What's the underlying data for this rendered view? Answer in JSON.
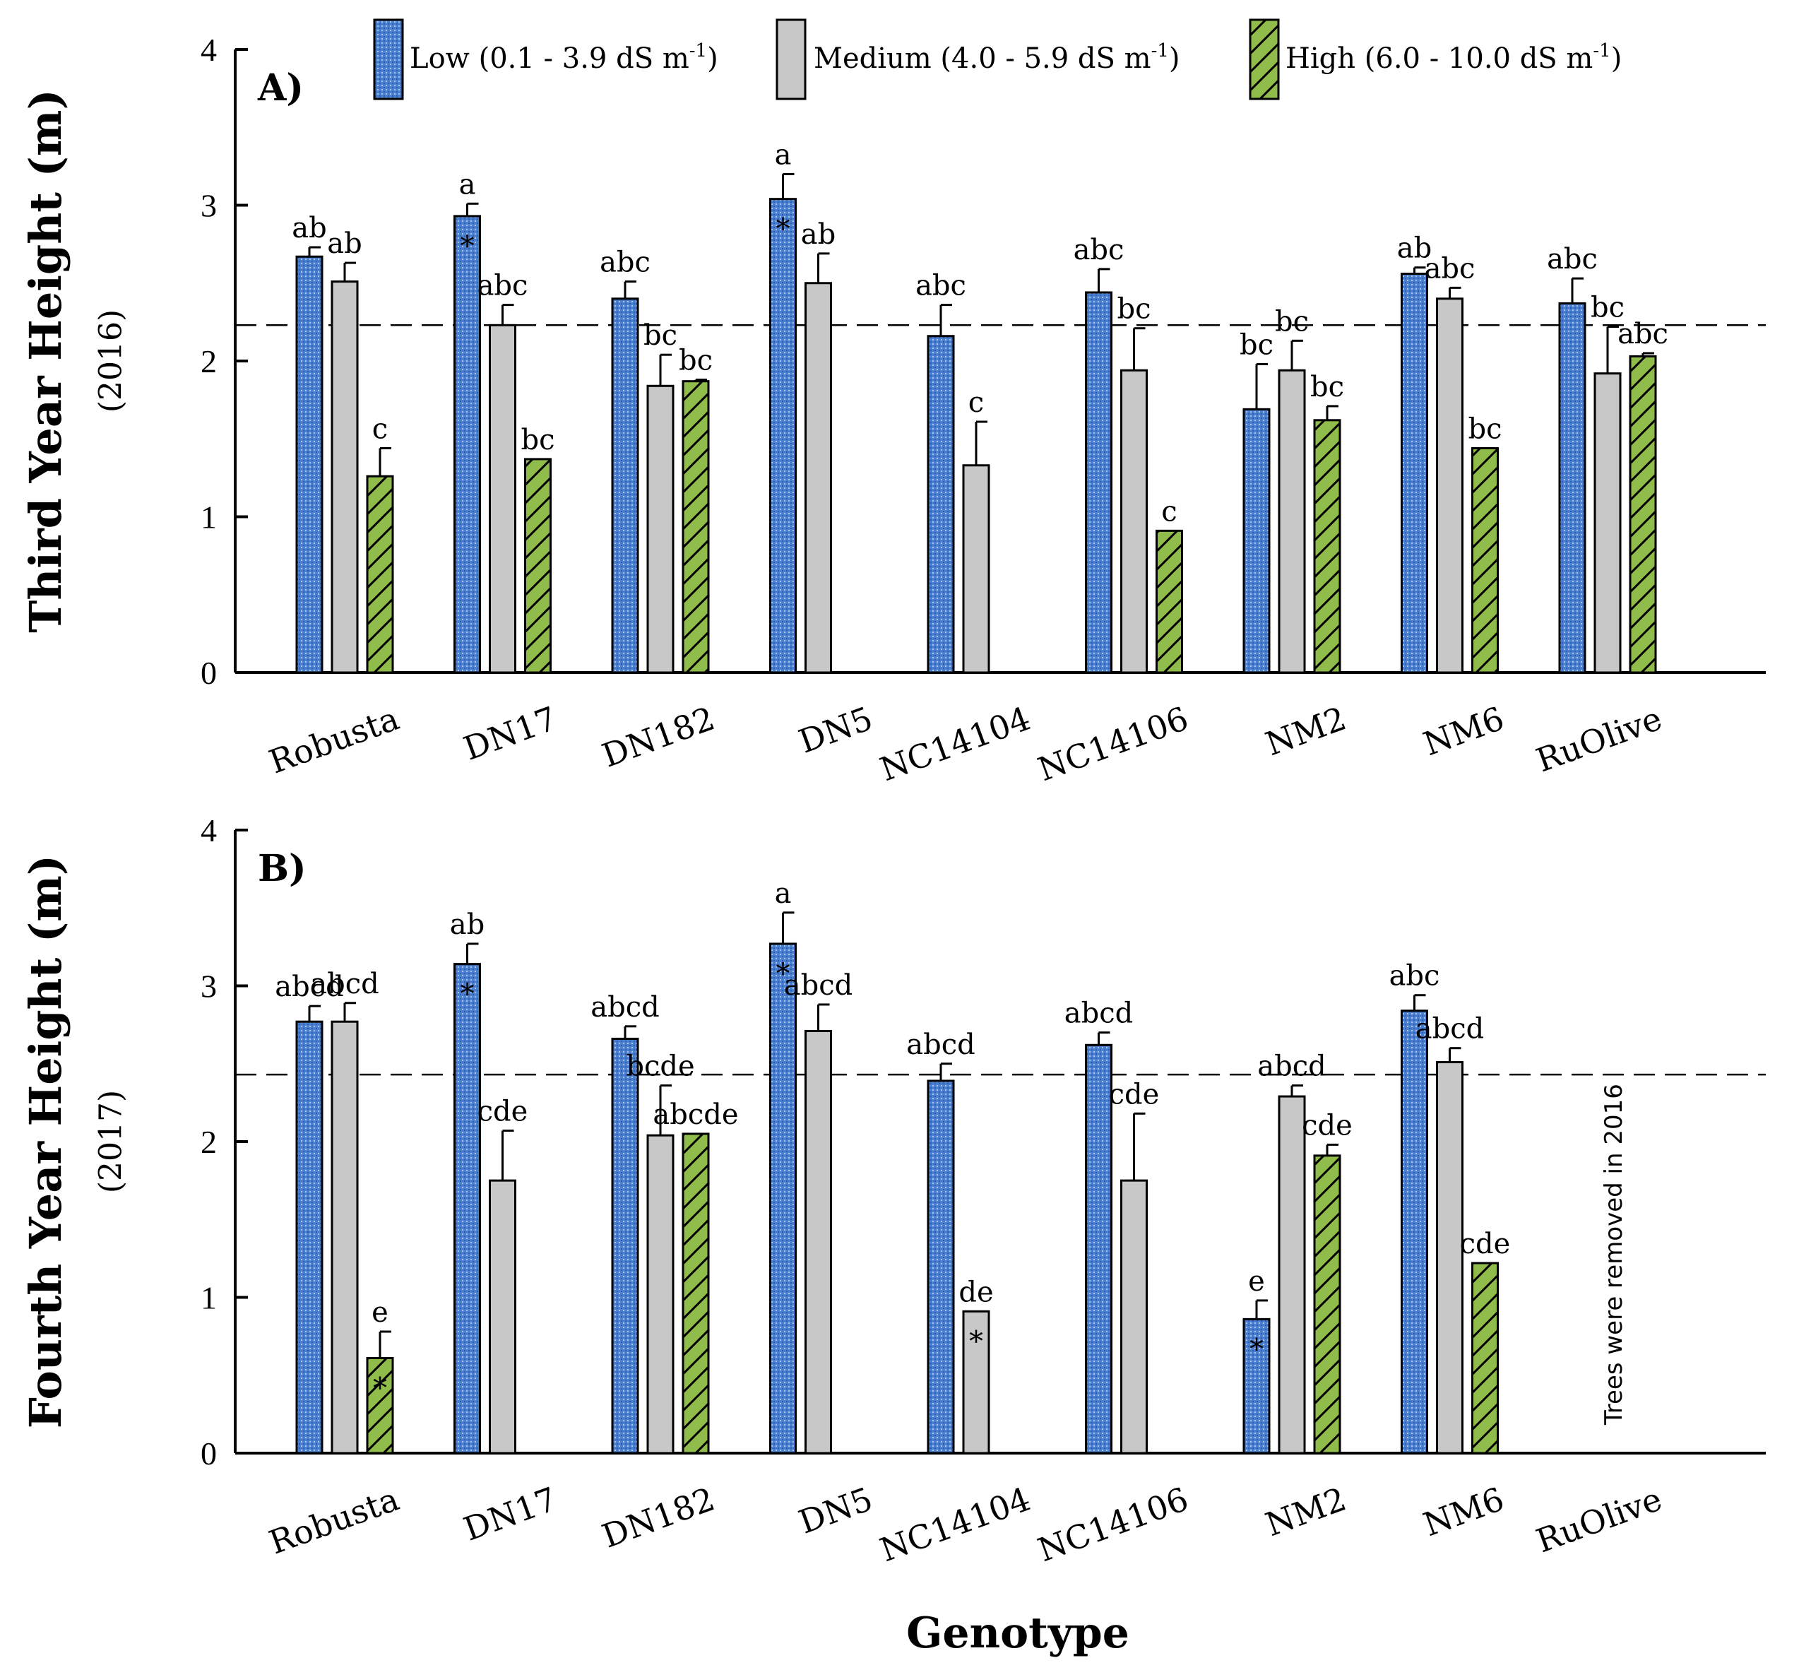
{
  "chart_data": [
    {
      "type": "bar",
      "panel": "A)",
      "ylabel": "Third Year Height (m)",
      "ysublabel": "(2016)",
      "ylim": [
        0,
        4
      ],
      "yticks": [
        "0",
        "1",
        "2",
        "3",
        "4"
      ],
      "reference_line": 2.23,
      "categories": [
        "Robusta",
        "DN17",
        "DN182",
        "DN5",
        "NC14104",
        "NC14106",
        "NM2",
        "NM6",
        "RuOlive"
      ],
      "series": [
        {
          "name": "Low",
          "values": [
            2.67,
            2.93,
            2.4,
            3.04,
            2.16,
            2.44,
            1.69,
            2.56,
            2.37
          ],
          "errors": [
            0.06,
            0.08,
            0.11,
            0.16,
            0.2,
            0.15,
            0.29,
            0.04,
            0.16
          ],
          "letters": [
            "ab",
            "a",
            "abc",
            "a",
            "abc",
            "abc",
            "bc",
            "ab",
            "abc"
          ],
          "stars": [
            "",
            "*",
            "",
            "*",
            "",
            "",
            "",
            "",
            ""
          ]
        },
        {
          "name": "Medium",
          "values": [
            2.51,
            2.23,
            1.84,
            2.5,
            1.33,
            1.94,
            1.94,
            2.4,
            1.92
          ],
          "errors": [
            0.12,
            0.13,
            0.2,
            0.19,
            0.28,
            0.27,
            0.19,
            0.07,
            0.3
          ],
          "letters": [
            "ab",
            "abc",
            "bc",
            "ab",
            "c",
            "bc",
            "bc",
            "abc",
            "bc"
          ],
          "stars": [
            "",
            "",
            "",
            "",
            "",
            "",
            "",
            "",
            ""
          ]
        },
        {
          "name": "High",
          "values": [
            1.26,
            1.37,
            1.87,
            null,
            null,
            0.91,
            1.62,
            1.44,
            2.03
          ],
          "errors": [
            0.18,
            0,
            0.01,
            0,
            0,
            0,
            0.09,
            0,
            0.02
          ],
          "letters": [
            "c",
            "bc",
            "bc",
            "",
            "",
            "c",
            "bc",
            "bc",
            "abc"
          ],
          "stars": [
            "",
            "",
            "",
            "",
            "",
            "",
            "",
            "",
            ""
          ]
        }
      ]
    },
    {
      "type": "bar",
      "panel": "B)",
      "ylabel": "Fourth Year Height (m)",
      "ysublabel": "(2017)",
      "ylim": [
        0,
        4
      ],
      "yticks": [
        "0",
        "1",
        "2",
        "3",
        "4"
      ],
      "reference_line": 2.43,
      "annotation": "Trees were removed in 2016",
      "xlabel": "Genotype",
      "categories": [
        "Robusta",
        "DN17",
        "DN182",
        "DN5",
        "NC14104",
        "NC14106",
        "NM2",
        "NM6",
        "RuOlive"
      ],
      "series": [
        {
          "name": "Low",
          "values": [
            2.77,
            3.14,
            2.66,
            3.27,
            2.39,
            2.62,
            0.86,
            2.84,
            null
          ],
          "errors": [
            0.1,
            0.13,
            0.08,
            0.2,
            0.11,
            0.08,
            0.12,
            0.1,
            0
          ],
          "letters": [
            "abcd",
            "ab",
            "abcd",
            "a",
            "abcd",
            "abcd",
            "e",
            "abc",
            ""
          ],
          "stars": [
            "",
            "*",
            "",
            "*",
            "",
            "",
            "*",
            "",
            ""
          ]
        },
        {
          "name": "Medium",
          "values": [
            2.77,
            1.75,
            2.04,
            2.71,
            0.91,
            1.75,
            2.29,
            2.51,
            null
          ],
          "errors": [
            0.12,
            0.32,
            0.32,
            0.17,
            0,
            0.43,
            0.07,
            0.09,
            0
          ],
          "letters": [
            "abcd",
            "cde",
            "bcde",
            "abcd",
            "de",
            "cde",
            "abcd",
            "abcd",
            ""
          ],
          "stars": [
            "",
            "",
            "",
            "",
            "*",
            "",
            "",
            "",
            ""
          ]
        },
        {
          "name": "High",
          "values": [
            0.61,
            null,
            2.05,
            null,
            null,
            null,
            1.91,
            1.22,
            null
          ],
          "errors": [
            0.17,
            0,
            0,
            0,
            0,
            0,
            0.07,
            0,
            0
          ],
          "letters": [
            "e",
            "",
            "abcde",
            "",
            "",
            "",
            "cde",
            "cde",
            ""
          ],
          "stars": [
            "*",
            "",
            "",
            "",
            "",
            "",
            "",
            "",
            ""
          ]
        }
      ]
    }
  ],
  "legend": {
    "items": [
      {
        "pre": "Low (0.1 - 3.9 dS m",
        "sup": "-1",
        "post": ")"
      },
      {
        "pre": "Medium (4.0 - 5.9 dS m",
        "sup": "-1",
        "post": ")"
      },
      {
        "pre": "High (6.0 - 10.0 dS m",
        "sup": "-1",
        "post": ")"
      }
    ]
  },
  "colors": {
    "low": "#4a7fd0",
    "low_dark": "#2a5aa8",
    "medium": "#c8c8c8",
    "high": "#8fbc4a"
  }
}
